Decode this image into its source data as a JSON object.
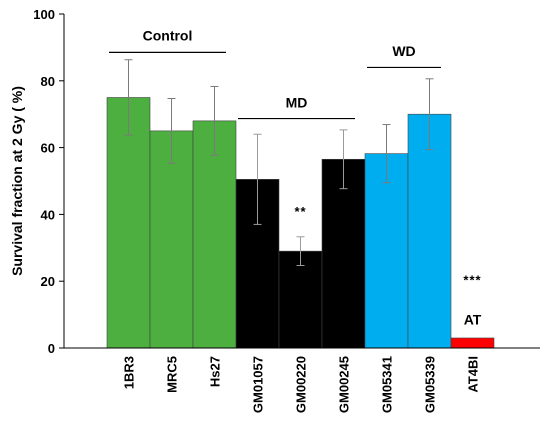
{
  "chart_data": {
    "type": "bar",
    "ylabel": "Survival fraction at 2 Gy ( %)",
    "xlabel": "",
    "ylim": [
      0,
      100
    ],
    "yticks": [
      0,
      20,
      40,
      60,
      80,
      100
    ],
    "grid": false,
    "categories": [
      "1BR3",
      "MRC5",
      "Hs27",
      "GM01057",
      "GM00220",
      "GM00245",
      "GM05341",
      "GM05339",
      "AT4BI"
    ],
    "values": [
      75,
      65,
      68,
      50.5,
      29,
      56.5,
      58.2,
      70,
      3
    ],
    "errors": [
      11.3,
      9.7,
      10.3,
      13.5,
      4.3,
      8.8,
      8.7,
      10.6,
      null
    ],
    "colors": [
      "#4caf3f",
      "#4caf3f",
      "#4caf3f",
      "#000000",
      "#000000",
      "#000000",
      "#00aeef",
      "#00aeef",
      "#ff0000"
    ],
    "groups": [
      {
        "label": "Control",
        "first": 0,
        "last": 2,
        "line_y": 88.5,
        "label_y": 92
      },
      {
        "label": "MD",
        "first": 3,
        "last": 5,
        "line_y": 68.7,
        "label_y": 72
      },
      {
        "label": "WD",
        "first": 6,
        "last": 7,
        "line_y": 84,
        "label_y": 87.5
      }
    ],
    "annotations": [
      {
        "text": "**",
        "category": 4,
        "y": 39.5
      },
      {
        "text": "***",
        "category": 8,
        "y": 19
      },
      {
        "text": "AT",
        "category": 8,
        "y": 7
      }
    ]
  }
}
